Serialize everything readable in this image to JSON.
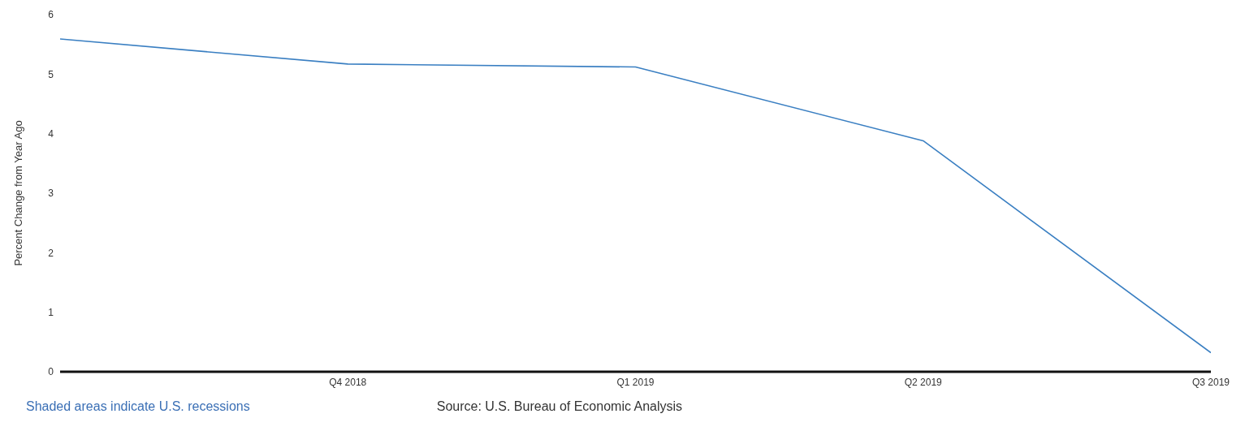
{
  "chart_data": {
    "type": "line",
    "ylabel": "Percent Change from Year Ago",
    "categories": [
      null,
      "Q4 2018",
      "Q1 2019",
      "Q2 2019",
      "Q3 2019"
    ],
    "series": [
      {
        "color": "#3a7fc2",
        "values": [
          5.59,
          5.17,
          5.12,
          3.88,
          0.32
        ]
      }
    ],
    "ylim": [
      0,
      6
    ],
    "yticks": [
      0,
      1,
      2,
      3,
      4,
      5,
      6
    ],
    "grid": false,
    "legend": false,
    "marker": "none",
    "line_style": "solid",
    "annotations": [
      "Shaded areas indicate U.S. recessions",
      "Source: U.S. Bureau of Economic Analysis"
    ]
  }
}
